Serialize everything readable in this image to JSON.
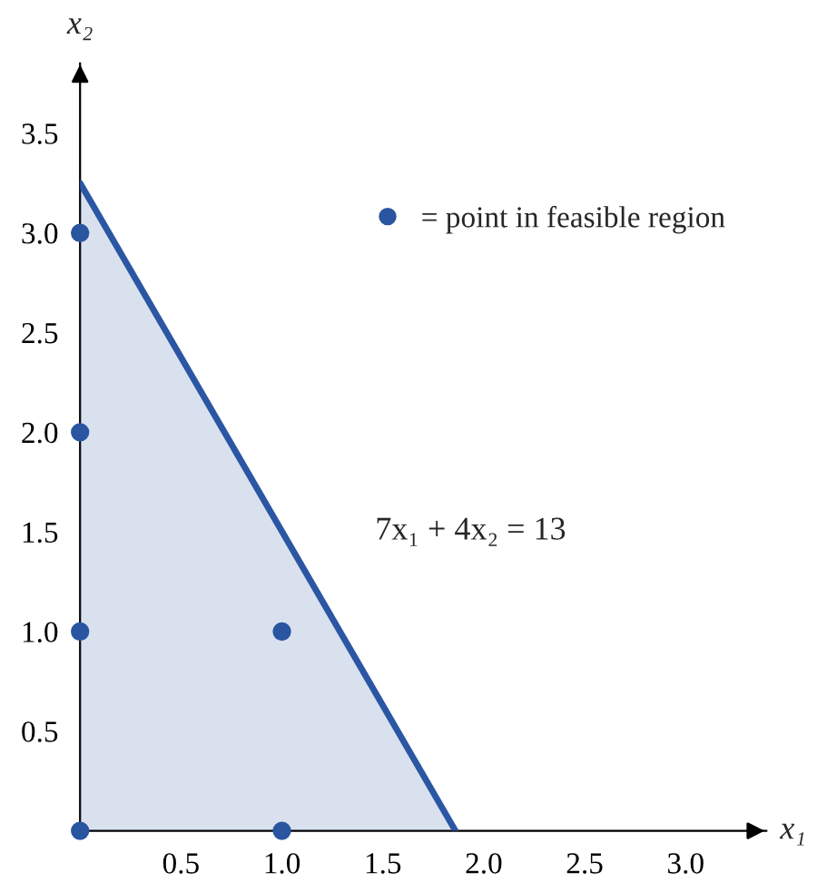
{
  "chart_data": {
    "type": "scatter",
    "xlabel": "x₁",
    "ylabel": "x₂",
    "xlim": [
      0,
      3.4
    ],
    "ylim": [
      0,
      3.85
    ],
    "xticks": [
      {
        "value": 0,
        "label": null
      },
      {
        "value": 0.5,
        "label": "0.5"
      },
      {
        "value": 1.0,
        "label": "1.0"
      },
      {
        "value": 1.5,
        "label": "1.5"
      },
      {
        "value": 2.0,
        "label": "2.0"
      },
      {
        "value": 2.5,
        "label": "2.5"
      },
      {
        "value": 3.0,
        "label": "3.0"
      }
    ],
    "yticks": [
      {
        "value": 0,
        "label": null
      },
      {
        "value": 0.5,
        "label": "0.5"
      },
      {
        "value": 1.0,
        "label": "1.0"
      },
      {
        "value": 1.5,
        "label": "1.5"
      },
      {
        "value": 2.0,
        "label": "2.0"
      },
      {
        "value": 2.5,
        "label": "2.5"
      },
      {
        "value": 3.0,
        "label": "3.0"
      },
      {
        "value": 3.5,
        "label": "3.5"
      }
    ],
    "series": [
      {
        "type": "area",
        "color": "#2b56a3",
        "x": [
          0,
          1.86
        ],
        "values": [
          3.25,
          0
        ]
      },
      {
        "name": "= point in feasible region",
        "color": "#2a55a0",
        "marker": "circle",
        "x": [
          0,
          0,
          0,
          0,
          1,
          1
        ],
        "values": [
          0,
          1,
          2,
          3,
          0,
          1
        ]
      }
    ],
    "annotations": [
      "7x₁ + 4x₂ = 13"
    ],
    "legend": "top right",
    "grid": false
  }
}
